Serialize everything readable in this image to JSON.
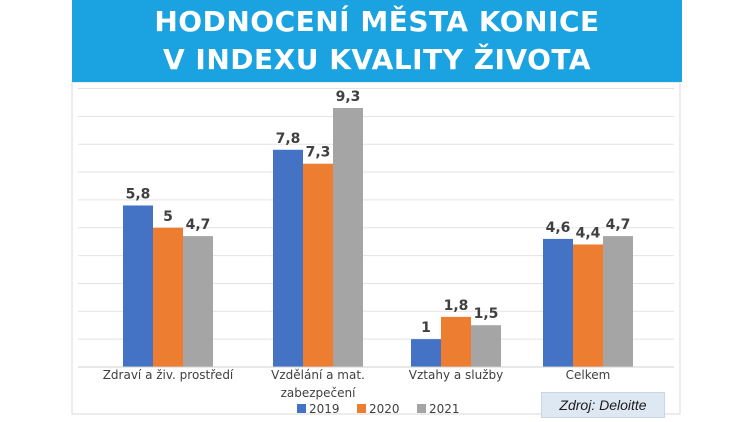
{
  "header": {
    "title_line1": "HODNOCENÍ MĚSTA KONICE",
    "title_line2": "V INDEXU KVALITY ŽIVOTA"
  },
  "source": "Zdroj: Deloitte",
  "colors": {
    "2019": "#4472c4",
    "2020": "#ed7d31",
    "2021": "#a5a5a5",
    "title_bg": "#1aa3e0"
  },
  "chart_data": {
    "type": "bar",
    "title": "HODNOCENÍ MĚSTA KONICE V INDEXU KVALITY ŽIVOTA",
    "categories": [
      [
        "Zdraví a živ. prostředí"
      ],
      [
        "Vzdělání a mat.",
        "zabezpečení"
      ],
      [
        "Vztahy a služby"
      ],
      [
        "Celkem"
      ]
    ],
    "series": [
      {
        "name": "2019",
        "values": [
          5.8,
          7.8,
          1,
          4.6
        ],
        "labels": [
          "5,8",
          "7,8",
          "1",
          "4,6"
        ]
      },
      {
        "name": "2020",
        "values": [
          5,
          7.3,
          1.8,
          4.4
        ],
        "labels": [
          "5",
          "7,3",
          "1,8",
          "4,4"
        ]
      },
      {
        "name": "2021",
        "values": [
          4.7,
          9.3,
          1.5,
          4.7
        ],
        "labels": [
          "4,7",
          "9,3",
          "1,5",
          "4,7"
        ]
      }
    ],
    "ylim": [
      0,
      10
    ],
    "grid": true,
    "legend_position": "bottom"
  }
}
